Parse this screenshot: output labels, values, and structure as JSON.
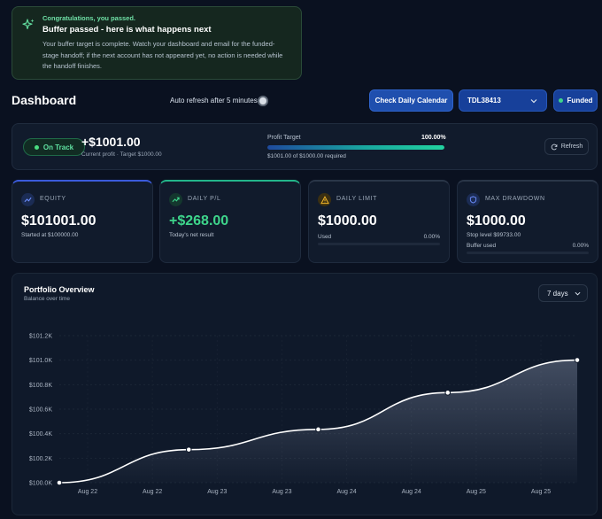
{
  "banner": {
    "kicker": "Congratulations, you passed.",
    "title": "Buffer passed - here is what happens next",
    "body_line1": "Your buffer target is complete. Watch your dashboard and email for the funded-",
    "body_line2": "stage handoff; if the next account has not appeared yet, no action is needed while",
    "body_line3": "the handoff finishes.",
    "icon": "sparkles-icon"
  },
  "header": {
    "title": "Dashboard",
    "auto_refresh_label": "Auto refresh after 5 minutes",
    "calendar_button": "Check Daily Calendar",
    "account_id": "TDL38413",
    "funded_label": "Funded"
  },
  "status": {
    "badge": "On Track",
    "profit": "+$1001.00",
    "current_profit_label": "Current profit",
    "separator": "·",
    "target_label": "Target $1000.00",
    "profit_target_label": "Profit Target",
    "profit_target_pct": "100.00%",
    "profit_target_progress": 1.0,
    "required_text": "$1001.00 of $1000.00 required",
    "refresh_label": "Refresh"
  },
  "metrics": [
    {
      "label": "EQUITY",
      "value": "$101001.00",
      "sub": "Started at $100000.00",
      "accent": "#3b5bdb",
      "icon": "trend-up-icon"
    },
    {
      "label": "DAILY P/L",
      "value": "+$268.00",
      "sub": "Today's net result",
      "accent": "#23b58a",
      "icon": "trend-up-icon"
    },
    {
      "label": "DAILY LIMIT",
      "value": "$1000.00",
      "sub": "Used",
      "pct": "0.00%",
      "progress": 0,
      "accent": "#2a3648",
      "icon": "warning-icon"
    },
    {
      "label": "MAX DRAWDOWN",
      "value": "$1000.00",
      "sub": "Stop level $99733.00",
      "sub2": "Buffer used",
      "pct": "0.00%",
      "progress": 0,
      "accent": "#2a3648",
      "icon": "shield-icon"
    }
  ],
  "portfolio": {
    "title": "Portfolio Overview",
    "subtitle": "Balance over time",
    "range": "7 days"
  },
  "chart_data": {
    "type": "area",
    "y_ticks": [
      "$100.0K",
      "$100.2K",
      "$100.4K",
      "$100.6K",
      "$100.8K",
      "$101.0K",
      "$101.2K"
    ],
    "y_tick_values": [
      100000,
      100200,
      100400,
      100600,
      100800,
      101000,
      101200
    ],
    "x_tick_labels": [
      "Aug 22",
      "Aug 22",
      "Aug 23",
      "Aug 23",
      "Aug 24",
      "Aug 24",
      "Aug 25",
      "Aug 25"
    ],
    "points": [
      {
        "index": 0,
        "value": 100000
      },
      {
        "index": 1,
        "value": 100270
      },
      {
        "index": 2,
        "value": 100435
      },
      {
        "index": 3,
        "value": 100735
      },
      {
        "index": 4,
        "value": 101001
      }
    ],
    "ylim": [
      100000,
      101200
    ],
    "grid": true,
    "line_color": "#ffffff"
  }
}
